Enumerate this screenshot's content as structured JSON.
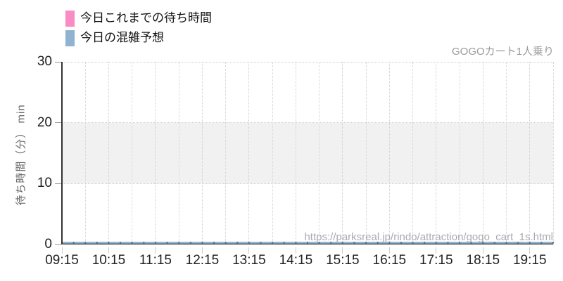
{
  "title": "GOGOカート1人乗り",
  "watermark": "https://parksreal.jp/rindo/attraction/gogo_cart_1s.html",
  "legend": [
    {
      "label": "今日これまでの待ち時間",
      "color": "#f98cc4"
    },
    {
      "label": "今日の混雑予想",
      "color": "#8fb3d1"
    }
  ],
  "chart_data": {
    "type": "line",
    "title": "GOGOカート1人乗り",
    "xlabel": "",
    "ylabel": "待ち時間（分） min",
    "ylim": [
      0,
      30
    ],
    "yticks": [
      0,
      10,
      20,
      30
    ],
    "x_ticklabels": [
      "09:15",
      "10:15",
      "11:15",
      "12:15",
      "13:15",
      "14:15",
      "15:15",
      "16:15",
      "17:15",
      "18:15",
      "19:15"
    ],
    "x_span_hours": 10.5,
    "grid": "dotted horizontal at yticks; vertical lines every 30 min (dotted on hour, dashed on half-hour)",
    "grid_color": "#d6d6d6",
    "axis_color": "#333333",
    "tick_label_color": "#1f1f1f",
    "highlight_band": {
      "from": 10,
      "to": 20,
      "color": "#f1f1f2"
    },
    "legend_position": "top-left",
    "series": [
      {
        "name": "今日これまでの待ち時間",
        "color": "#f98cc4",
        "values": []
      },
      {
        "name": "今日の混雑予想",
        "color": "#8fb3d1",
        "marker_color": "#46718f",
        "points_per_hour": 4,
        "values": [
          0,
          0,
          0,
          0,
          0,
          0,
          0,
          0,
          0,
          0,
          0,
          0,
          0,
          0,
          0,
          0,
          0,
          0,
          0,
          0,
          0,
          0,
          0,
          0,
          0,
          0,
          0,
          0,
          0,
          0,
          0,
          0,
          0,
          0,
          0,
          0,
          0,
          0,
          0,
          0,
          0,
          0,
          0
        ]
      }
    ]
  }
}
